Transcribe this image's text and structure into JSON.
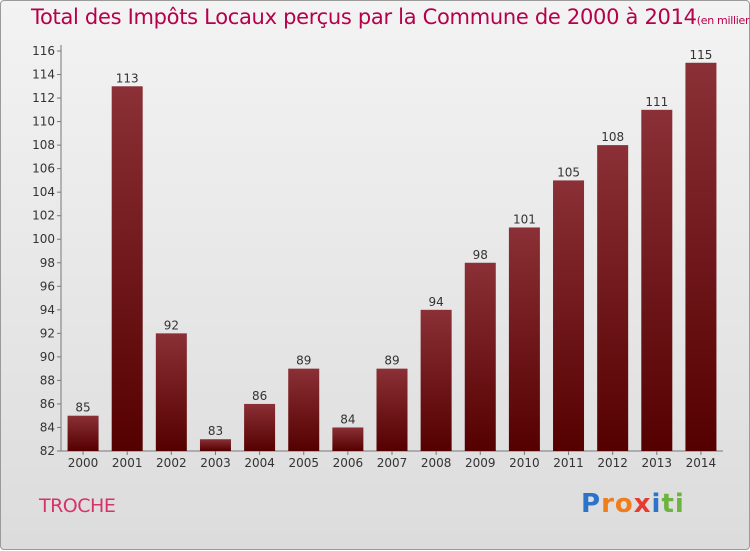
{
  "header": {
    "title": "Total des Impôts Locaux perçus par la Commune de 2000 à 2014",
    "unit": "(en milliers d'€)"
  },
  "commune": "TROCHE",
  "brand": {
    "letters": [
      "P",
      "r",
      "o",
      "x",
      "i",
      "t",
      "i"
    ]
  },
  "colors": {
    "title": "#b5004b",
    "bar_top": "#8a3036",
    "bar_bottom": "#550000",
    "commune": "#d6336c"
  },
  "chart_data": {
    "type": "bar",
    "title": "Total des Impôts Locaux perçus par la Commune de 2000 à 2014",
    "xlabel": "",
    "ylabel": "(en milliers d'€)",
    "categories": [
      "2000",
      "2001",
      "2002",
      "2003",
      "2004",
      "2005",
      "2006",
      "2007",
      "2008",
      "2009",
      "2010",
      "2011",
      "2012",
      "2013",
      "2014"
    ],
    "values": [
      85,
      113,
      92,
      83,
      86,
      89,
      84,
      89,
      94,
      98,
      101,
      105,
      108,
      111,
      115
    ],
    "ylim": [
      82,
      116
    ],
    "ytick_step": 2,
    "grid": false
  }
}
